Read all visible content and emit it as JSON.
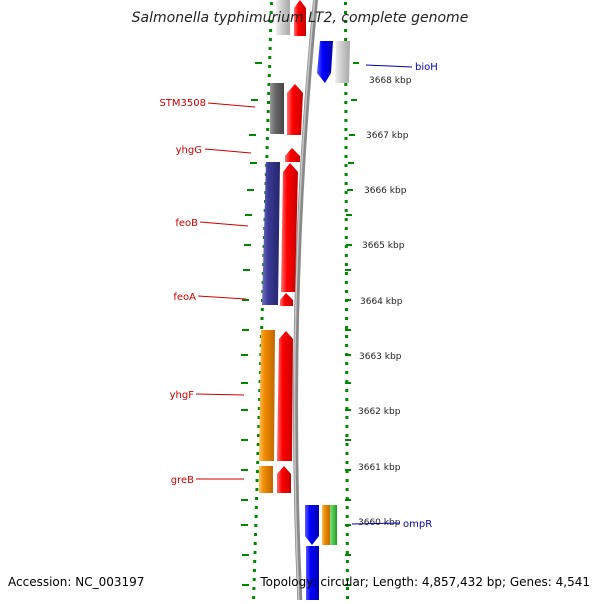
{
  "title": "Salmonella typhimurium LT2, complete genome",
  "footer": {
    "accession": "Accession: NC_003197",
    "stats": "Topology: circular; Length: 4,857,432 bp; Genes: 4,541"
  },
  "ruler": [
    "3668 kbp",
    "3667 kbp",
    "3666 kbp",
    "3665 kbp",
    "3664 kbp",
    "3663 kbp",
    "3662 kbp",
    "3661 kbp",
    "3660 kbp"
  ],
  "gene_labels_left": [
    "STM3508",
    "yhgG",
    "feoB",
    "feoA",
    "yhgF",
    "greB"
  ],
  "gene_labels_right": [
    "bioH",
    "ompR"
  ],
  "colors": {
    "reverse_label": "#cc0000",
    "forward_label": "#0000aa",
    "cds": "#ff0000",
    "forward_gene": "#0000ff",
    "dots": "#008800",
    "backbone": "#888888"
  }
}
